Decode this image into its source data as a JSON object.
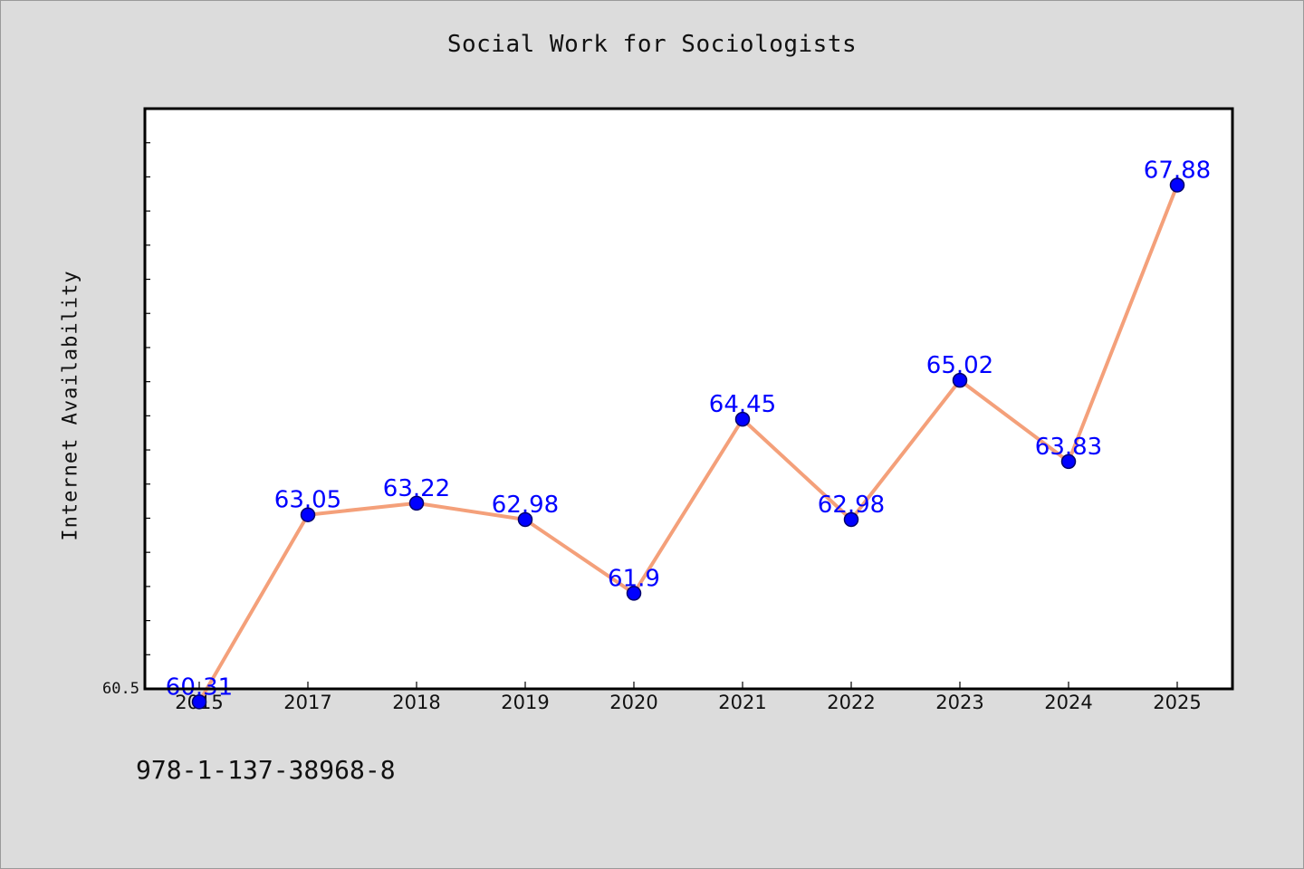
{
  "title": "Social Work for Sociologists",
  "footnote": "978-1-137-38968-8",
  "chart_data": {
    "type": "line",
    "title": "Social Work for Sociologists",
    "xlabel": "",
    "ylabel": "Internet Availability",
    "categories": [
      "2015",
      "2017",
      "2018",
      "2019",
      "2020",
      "2021",
      "2022",
      "2023",
      "2024",
      "2025"
    ],
    "series": [
      {
        "values": [
          60.31,
          63.05,
          63.22,
          62.98,
          61.9,
          64.45,
          62.98,
          65.02,
          63.83,
          67.88
        ],
        "line_color": "#f4a07a",
        "marker_color": "#0000ff"
      }
    ],
    "data_labels": [
      "60.31",
      "63.05",
      "63.22",
      "62.98",
      "61.9",
      "64.45",
      "62.98",
      "65.02",
      "63.83",
      "67.88"
    ],
    "y_tick_labels": [
      "60.5"
    ],
    "ylim": [
      60.5,
      69.0
    ],
    "grid": false,
    "legend": "none"
  }
}
